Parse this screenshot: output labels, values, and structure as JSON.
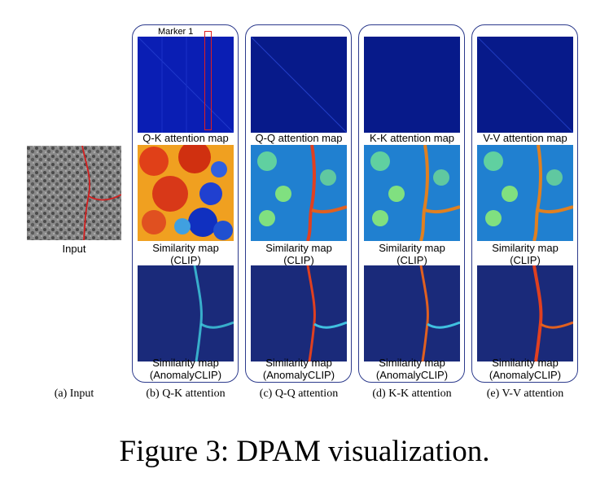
{
  "figure": {
    "title": "Figure 3: DPAM visualization.",
    "input": {
      "label": "Input",
      "caption": "(a) Input"
    },
    "marker_label": "Marker 1",
    "panels": [
      {
        "attention_label": "Q-K attention map",
        "clip_label_1": "Similarity map",
        "clip_label_2": "(CLIP)",
        "anomaly_label_1": "Similarity map",
        "anomaly_label_2": "(AnomalyCLIP)",
        "caption": "(b) Q-K attention"
      },
      {
        "attention_label": "Q-Q attention map",
        "clip_label_1": "Similarity map",
        "clip_label_2": "(CLIP)",
        "anomaly_label_1": "Similarity map",
        "anomaly_label_2": "(AnomalyCLIP)",
        "caption": "(c) Q-Q attention"
      },
      {
        "attention_label": "K-K attention map",
        "clip_label_1": "Similarity map",
        "clip_label_2": "(CLIP)",
        "anomaly_label_1": "Similarity map",
        "anomaly_label_2": "(AnomalyCLIP)",
        "caption": "(d) K-K attention"
      },
      {
        "attention_label": "V-V attention map",
        "clip_label_1": "Similarity map",
        "clip_label_2": "(CLIP)",
        "anomaly_label_1": "Similarity map",
        "anomaly_label_2": "(AnomalyCLIP)",
        "caption": "(e) V-V attention"
      }
    ],
    "colors": {
      "panel_border": "#2c3a8c",
      "attention_blue": "#0a1eb4",
      "marker_red": "#e02020",
      "crack_red": "#d42020"
    }
  }
}
